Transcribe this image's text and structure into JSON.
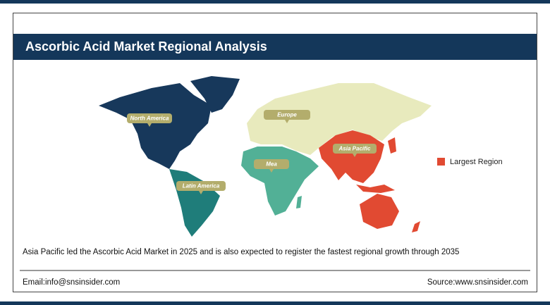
{
  "header": {
    "title": "Ascorbic Acid Market Regional Analysis"
  },
  "map": {
    "regions": [
      {
        "label": "North America"
      },
      {
        "label": "Europe"
      },
      {
        "label": "Asia Pacific"
      },
      {
        "label": "Mea"
      },
      {
        "label": "Latin America"
      }
    ]
  },
  "legend": {
    "label": "Largest Region"
  },
  "caption": "Asia Pacific led the Ascorbic Acid Market in 2025 and is also expected to register the fastest regional growth through 2035",
  "footer": {
    "email": "Email:info@snsinsider.com",
    "source": "Source:www.snsinsider.com"
  }
}
